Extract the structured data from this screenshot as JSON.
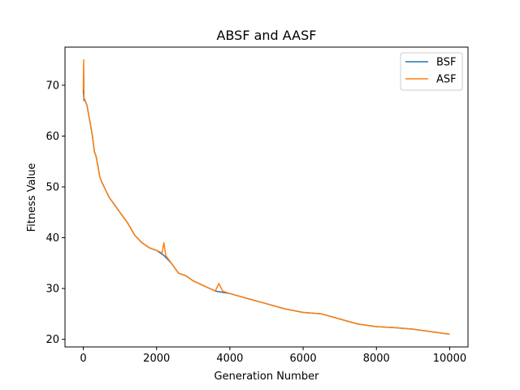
{
  "chart_data": {
    "type": "line",
    "title": "ABSF and AASF",
    "xlabel": "Generation Number",
    "ylabel": "Fitness Value",
    "xlim": [
      -500,
      10500
    ],
    "ylim": [
      18.5,
      77.5
    ],
    "xticks": [
      0,
      2000,
      4000,
      6000,
      8000,
      10000
    ],
    "yticks": [
      20,
      30,
      40,
      50,
      60,
      70
    ],
    "grid": false,
    "legend_position": "top-right",
    "series": [
      {
        "name": "BSF",
        "color": "#1f77b4",
        "x": [
          0,
          20,
          50,
          100,
          150,
          200,
          250,
          300,
          350,
          400,
          450,
          500,
          600,
          700,
          800,
          900,
          1000,
          1100,
          1200,
          1400,
          1600,
          1800,
          2000,
          2200,
          2400,
          2600,
          2800,
          3000,
          3300,
          3600,
          4000,
          4500,
          5000,
          5500,
          6000,
          6500,
          7000,
          7500,
          8000,
          8500,
          9000,
          9500,
          10000
        ],
        "y": [
          69,
          67,
          67,
          66,
          64,
          62,
          60,
          57,
          56,
          54,
          52,
          51,
          49.5,
          48,
          47,
          46,
          45,
          44,
          43,
          40.5,
          39,
          38,
          37.5,
          36.5,
          35,
          33,
          32.5,
          31.5,
          30.5,
          29.5,
          29,
          28,
          27,
          26,
          25.3,
          25,
          24,
          23,
          22.5,
          22.3,
          22,
          21.5,
          21
        ]
      },
      {
        "name": "ASF",
        "color": "#ff7f0e",
        "x": [
          0,
          10,
          20,
          50,
          100,
          150,
          200,
          250,
          300,
          350,
          400,
          450,
          500,
          600,
          700,
          800,
          900,
          1000,
          1100,
          1200,
          1400,
          1600,
          1800,
          2000,
          2150,
          2200,
          2250,
          2400,
          2600,
          2800,
          3000,
          3300,
          3600,
          3700,
          3800,
          4000,
          4500,
          5000,
          5500,
          6000,
          6500,
          7000,
          7500,
          8000,
          8500,
          9000,
          9500,
          10000
        ],
        "y": [
          69,
          75,
          67.5,
          67,
          66,
          64,
          62,
          60,
          57,
          56,
          54,
          52,
          51,
          49.5,
          48,
          47,
          46,
          45,
          44,
          43,
          40.5,
          39,
          38,
          37.5,
          37,
          39,
          36.5,
          35,
          33,
          32.5,
          31.5,
          30.5,
          29.5,
          31,
          29.5,
          29,
          28,
          27,
          26,
          25.3,
          25,
          24,
          23,
          22.5,
          22.3,
          22,
          21.5,
          21
        ]
      }
    ]
  }
}
